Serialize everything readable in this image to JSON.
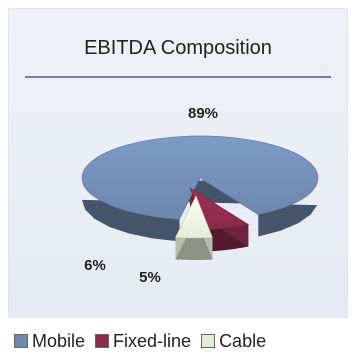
{
  "chart_data": {
    "type": "pie",
    "title": "EBITDA Composition",
    "slices": [
      {
        "label": "Mobile",
        "value": 89,
        "display": "89%",
        "color": "#6d87ad"
      },
      {
        "label": "Fixed-line",
        "value": 6,
        "display": "6%",
        "color": "#8b2a4a"
      },
      {
        "label": "Cable",
        "value": 5,
        "display": "5%",
        "color": "#e4ecd6"
      }
    ],
    "legend_position": "bottom"
  }
}
